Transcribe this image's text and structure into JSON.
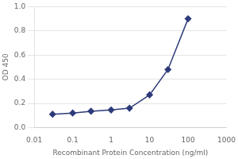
{
  "chart_data": {
    "type": "line",
    "xlabel": "Recombinant Protein Concentration (ng/ml)",
    "ylabel": "OD 450",
    "x": [
      0.03,
      0.1,
      0.3,
      1.0,
      3.0,
      10.0,
      30.0,
      100.0
    ],
    "values": [
      0.11,
      0.12,
      0.135,
      0.145,
      0.16,
      0.27,
      0.48,
      0.9
    ],
    "color": "#2d3b7a",
    "marker": "diamond",
    "log": "x",
    "xlim": [
      0.01,
      1000
    ],
    "xticks": [
      0.01,
      0.1,
      1,
      10,
      100,
      1000
    ],
    "ylim": [
      0.0,
      1.0
    ],
    "yticks": [
      {
        "value": 0.0,
        "label": "0.0"
      },
      0.2,
      0.4,
      0.6,
      0.8,
      {
        "value": 1.0,
        "label": "1.0"
      }
    ],
    "grid": "y"
  }
}
